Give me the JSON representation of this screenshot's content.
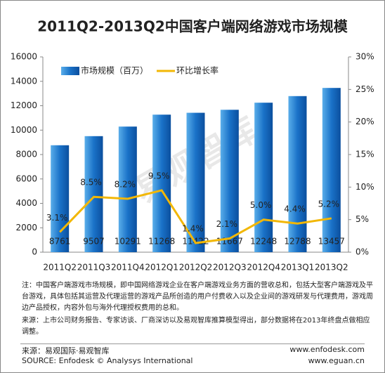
{
  "chart_data": {
    "type": "bar_line",
    "title": "2011Q2-2013Q2中国客户端网络游戏市场规模",
    "watermark": "易观智库",
    "categories": [
      "2011Q2",
      "2011Q3",
      "2011Q4",
      "2012Q1",
      "2012Q2",
      "2012Q3",
      "2012Q4",
      "2013Q1",
      "2013Q2"
    ],
    "series": [
      {
        "name": "市场规模（百万）",
        "type": "bar",
        "color": "#1a72c8",
        "values": [
          8761,
          9507,
          10291,
          11268,
          11422,
          11667,
          12248,
          12788,
          13457
        ]
      },
      {
        "name": "环比增长率",
        "type": "line",
        "axis": "y2",
        "color": "#f2b705",
        "values": [
          3.1,
          8.5,
          8.2,
          9.5,
          1.4,
          2.1,
          5.0,
          4.4,
          5.2
        ],
        "value_labels": [
          "3.1%",
          "8.5%",
          "8.2%",
          "9.5%",
          "1.4%",
          "2.1%",
          "5.0%",
          "4.4%",
          "5.2%"
        ]
      }
    ],
    "ylim": [
      0,
      16000
    ],
    "yticks": [
      0,
      2000,
      4000,
      6000,
      8000,
      10000,
      12000,
      14000,
      16000
    ],
    "y2lim": [
      0,
      30
    ],
    "y2ticks": [
      {
        "value": 0,
        "label": "0%"
      },
      {
        "value": 5,
        "label": "5%"
      },
      {
        "value": 10,
        "label": "10%"
      },
      {
        "value": 15,
        "label": "15%"
      },
      {
        "value": 20,
        "label": "20%"
      },
      {
        "value": 25,
        "label": "25%"
      },
      {
        "value": 30,
        "label": "30%"
      }
    ],
    "notes": [
      "注：中国客户端游戏市场规模，即中国网络游戏企业在客户端游戏业务方面的营收总和，包括大型客户端游戏及平台游戏，具体包括其运营及代理运营的游戏产品所创造的用户付费收入以及企业间的游戏研发与代理费用，游戏周边产品授权，内容外包与海外代理授权费用的总和。",
      "来源：上市公司财务报告、专家访谈、厂商深访以及易观智库推算模型得出，部分数据将在2013年终盘点做相应调整。"
    ],
    "source_cn": "来源：易观国际·易观智库",
    "source_en": "SOURCE: Enfodesk © Analysys International",
    "url_1": "www.enfodesk.com",
    "url_2": "www.eguan.cn"
  }
}
